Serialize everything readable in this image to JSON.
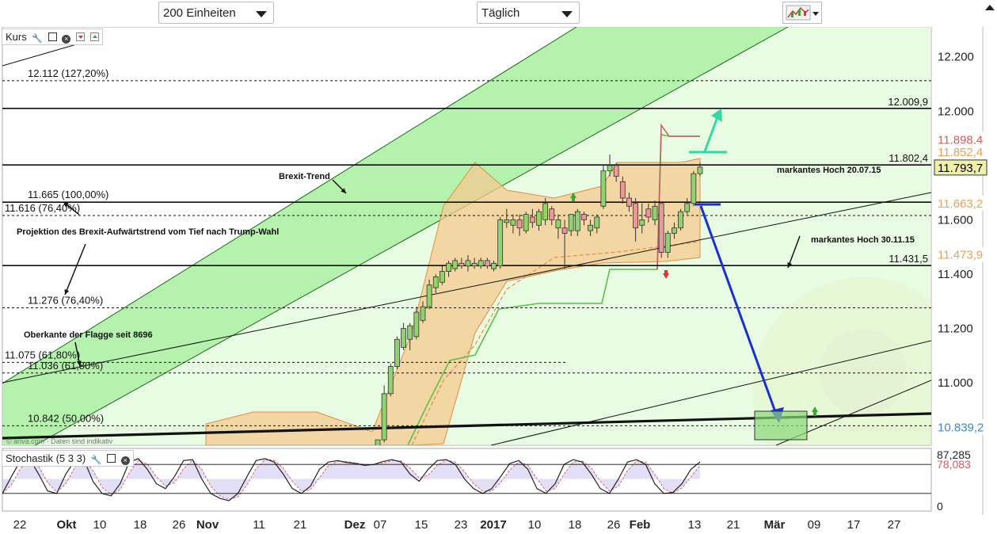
{
  "toolbar": {
    "units_select": "200 Einheiten",
    "period_select": "Täglich"
  },
  "main_panel": {
    "label": "Kurs"
  },
  "stoch_panel": {
    "label": "Stochastik (5 3 3)"
  },
  "watermark_text": "© ariva.com · Daten sind indikativ",
  "colors": {
    "up_candle": "#8fd46a",
    "down_candle": "#e89a9a",
    "channel_green": "#a8f0a0",
    "band_orange": "#f6c98f",
    "arrow_blue": "#1a2fd6",
    "arrow_teal": "#33d9a5"
  },
  "chart_data": [
    {
      "type": "candlestick",
      "name": "Kurs",
      "x_ticks": [
        "22",
        "Okt",
        "10",
        "18",
        "26",
        "Nov",
        "11",
        "21",
        "Dez",
        "07",
        "15",
        "23",
        "2017",
        "10",
        "18",
        "26",
        "Feb",
        "13",
        "21",
        "Mär",
        "09",
        "17",
        "27"
      ],
      "ylim": [
        10.77,
        12.31
      ],
      "y_ticks": [
        "12.200",
        "12.000",
        "11.800",
        "11.600",
        "11.400",
        "11.200",
        "11.000"
      ],
      "price_tags": [
        {
          "label": "11.898,4",
          "value": 11.898,
          "color": "#d06060"
        },
        {
          "label": "11.852,4",
          "value": 11.852,
          "color": "#f0a050"
        },
        {
          "label": "11.793,7",
          "value": 11.794,
          "color": "#000000"
        },
        {
          "label": "11.663,2",
          "value": 11.663,
          "color": "#f0a050"
        },
        {
          "label": "11.473,9",
          "value": 11.474,
          "color": "#f0a050"
        },
        {
          "label": "10.839,2",
          "value": 10.839,
          "color": "#3a8ad6"
        }
      ],
      "horizontal_lines": [
        {
          "label": "12.112 (127,20%)",
          "value": 12.112,
          "style": "dashed"
        },
        {
          "label": "12.009,9",
          "value": 12.01,
          "style": "solid"
        },
        {
          "label": "11.802,4",
          "value": 11.802,
          "style": "solid"
        },
        {
          "label": "11.665 (100,00%)",
          "value": 11.665,
          "style": "solid"
        },
        {
          "label": "11.616 (76,40%)",
          "value": 11.616,
          "style": "dashed"
        },
        {
          "label": "11.431,5",
          "value": 11.4315,
          "style": "solid"
        },
        {
          "label": "11.276 (76,40%)",
          "value": 11.276,
          "style": "dashed"
        },
        {
          "label": "11.075 (61,80%)",
          "value": 11.075,
          "style": "dashed"
        },
        {
          "label": "11.036 (61,80%)",
          "value": 11.036,
          "style": "dashed"
        },
        {
          "label": "10.842 (50,00%)",
          "value": 10.842,
          "style": "dashed"
        }
      ],
      "annotations": [
        "Brexit-Trend",
        "Projektion des  Brexit-Aufwärtstrend vom Tief nach Trump-Wahl",
        "Oberkante der Flagge seit 8696",
        "markantes Hoch 20.07.15",
        "markantes Hoch 30.11.15"
      ],
      "candles": [
        {
          "o": 10.75,
          "h": 10.79,
          "l": 10.72,
          "c": 10.79
        },
        {
          "o": 10.79,
          "h": 10.99,
          "l": 10.78,
          "c": 10.96
        },
        {
          "o": 10.96,
          "h": 11.07,
          "l": 10.95,
          "c": 11.06
        },
        {
          "o": 11.06,
          "h": 11.17,
          "l": 11.05,
          "c": 11.16
        },
        {
          "o": 11.13,
          "h": 11.22,
          "l": 11.12,
          "c": 11.2
        },
        {
          "o": 11.16,
          "h": 11.22,
          "l": 11.12,
          "c": 11.21
        },
        {
          "o": 11.17,
          "h": 11.28,
          "l": 11.16,
          "c": 11.26
        },
        {
          "o": 11.23,
          "h": 11.3,
          "l": 11.22,
          "c": 11.28
        },
        {
          "o": 11.28,
          "h": 11.38,
          "l": 11.27,
          "c": 11.36
        },
        {
          "o": 11.35,
          "h": 11.4,
          "l": 11.33,
          "c": 11.39
        },
        {
          "o": 11.37,
          "h": 11.43,
          "l": 11.36,
          "c": 11.41
        },
        {
          "o": 11.41,
          "h": 11.45,
          "l": 11.39,
          "c": 11.44
        },
        {
          "o": 11.42,
          "h": 11.46,
          "l": 11.41,
          "c": 11.45
        },
        {
          "o": 11.44,
          "h": 11.46,
          "l": 11.42,
          "c": 11.43
        },
        {
          "o": 11.43,
          "h": 11.47,
          "l": 11.41,
          "c": 11.45
        },
        {
          "o": 11.43,
          "h": 11.46,
          "l": 11.42,
          "c": 11.44
        },
        {
          "o": 11.43,
          "h": 11.46,
          "l": 11.42,
          "c": 11.45
        },
        {
          "o": 11.45,
          "h": 11.46,
          "l": 11.42,
          "c": 11.43
        },
        {
          "o": 11.42,
          "h": 11.45,
          "l": 11.41,
          "c": 11.44
        },
        {
          "o": 11.43,
          "h": 11.61,
          "l": 11.42,
          "c": 11.6
        },
        {
          "o": 11.59,
          "h": 11.64,
          "l": 11.57,
          "c": 11.6
        },
        {
          "o": 11.58,
          "h": 11.62,
          "l": 11.55,
          "c": 11.6
        },
        {
          "o": 11.6,
          "h": 11.62,
          "l": 11.54,
          "c": 11.57
        },
        {
          "o": 11.56,
          "h": 11.63,
          "l": 11.55,
          "c": 11.62
        },
        {
          "o": 11.61,
          "h": 11.64,
          "l": 11.57,
          "c": 11.59
        },
        {
          "o": 11.58,
          "h": 11.64,
          "l": 11.56,
          "c": 11.63
        },
        {
          "o": 11.6,
          "h": 11.68,
          "l": 11.58,
          "c": 11.66
        },
        {
          "o": 11.64,
          "h": 11.65,
          "l": 11.58,
          "c": 11.6
        },
        {
          "o": 11.57,
          "h": 11.62,
          "l": 11.53,
          "c": 11.6
        },
        {
          "o": 11.57,
          "h": 11.6,
          "l": 11.42,
          "c": 11.55
        },
        {
          "o": 11.56,
          "h": 11.62,
          "l": 11.54,
          "c": 11.62
        },
        {
          "o": 11.56,
          "h": 11.64,
          "l": 11.54,
          "c": 11.63
        },
        {
          "o": 11.62,
          "h": 11.63,
          "l": 11.58,
          "c": 11.6
        },
        {
          "o": 11.56,
          "h": 11.6,
          "l": 11.54,
          "c": 11.58
        },
        {
          "o": 11.57,
          "h": 11.62,
          "l": 11.55,
          "c": 11.61
        },
        {
          "o": 11.65,
          "h": 11.8,
          "l": 11.64,
          "c": 11.78
        },
        {
          "o": 11.78,
          "h": 11.84,
          "l": 11.76,
          "c": 11.8
        },
        {
          "o": 11.8,
          "h": 11.81,
          "l": 11.74,
          "c": 11.76
        },
        {
          "o": 11.74,
          "h": 11.76,
          "l": 11.66,
          "c": 11.68
        },
        {
          "o": 11.68,
          "h": 11.7,
          "l": 11.63,
          "c": 11.65
        },
        {
          "o": 11.66,
          "h": 11.68,
          "l": 11.52,
          "c": 11.57
        },
        {
          "o": 11.58,
          "h": 11.66,
          "l": 11.55,
          "c": 11.6
        },
        {
          "o": 11.64,
          "h": 11.66,
          "l": 11.59,
          "c": 11.61
        },
        {
          "o": 11.6,
          "h": 11.67,
          "l": 11.58,
          "c": 11.65
        },
        {
          "o": 11.66,
          "h": 11.66,
          "l": 11.46,
          "c": 11.48
        },
        {
          "o": 11.48,
          "h": 11.56,
          "l": 11.46,
          "c": 11.55
        },
        {
          "o": 11.55,
          "h": 11.59,
          "l": 11.53,
          "c": 11.57
        },
        {
          "o": 11.57,
          "h": 11.64,
          "l": 11.56,
          "c": 11.63
        },
        {
          "o": 11.63,
          "h": 11.68,
          "l": 11.62,
          "c": 11.66
        },
        {
          "o": 11.66,
          "h": 11.78,
          "l": 11.65,
          "c": 11.77
        },
        {
          "o": 11.77,
          "h": 11.81,
          "l": 11.76,
          "c": 11.794
        }
      ]
    },
    {
      "type": "line",
      "name": "Stochastik (5 3 3)",
      "ylim": [
        0,
        100
      ],
      "y_ticks": [
        "87,285",
        "78,083",
        "0"
      ],
      "series": [
        {
          "values": [
            20,
            55,
            88,
            92,
            60,
            25,
            20,
            60,
            88,
            90,
            45,
            20,
            15,
            40,
            85,
            92,
            70,
            40,
            30,
            55,
            88,
            90,
            50,
            20,
            10,
            5,
            20,
            55,
            88,
            92,
            85,
            60,
            30,
            20,
            35,
            70,
            85,
            88,
            84,
            82,
            78,
            80,
            86,
            90,
            85,
            60,
            45,
            70,
            88,
            90,
            80,
            50,
            30,
            20,
            30,
            55,
            82,
            88,
            70,
            30,
            20,
            40,
            80,
            90,
            85,
            60,
            30,
            20,
            50,
            85,
            90,
            80,
            40,
            20,
            22,
            40,
            70,
            85
          ]
        }
      ]
    }
  ]
}
